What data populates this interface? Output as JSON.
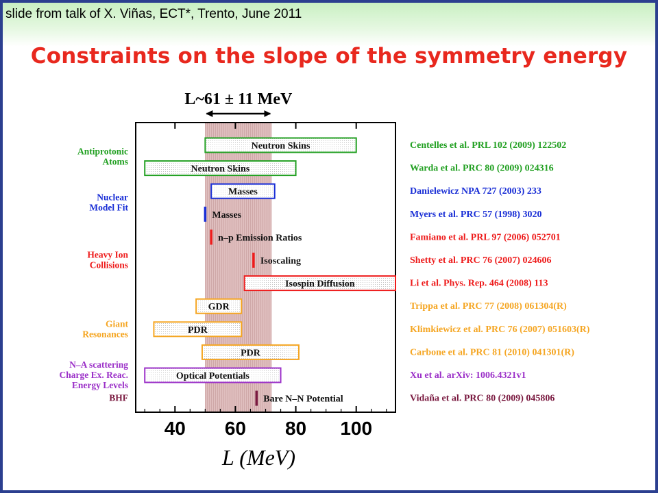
{
  "slide": {
    "credit": "slide from talk of X. Viñas, ECT*, Trento, June 2011",
    "title": "Constraints on the slope of the symmetry energy"
  },
  "chart_data": {
    "type": "bar",
    "title": "L~61 ± 11 MeV",
    "xlabel": "L (MeV)",
    "xlim": [
      27,
      113
    ],
    "xticks": [
      40,
      60,
      80,
      100
    ],
    "band": {
      "center": 61,
      "error": 11,
      "range": [
        50,
        72
      ],
      "color": "#d9b3b3"
    },
    "colors": {
      "Antiprotonic Atoms": "#22a022",
      "Nuclear Model Fit": "#1a2fd6",
      "Heavy Ion Collisions": "#ee1c1c",
      "Giant Resonances": "#f5a623",
      "N-A scattering": "#9b30c8",
      "BHF": "#7a1a40"
    },
    "groups": [
      {
        "name": "Antiprotonic Atoms",
        "lines": [
          "Antiprotonic",
          "Atoms"
        ],
        "color": "#22a022",
        "rows": [
          0,
          1
        ]
      },
      {
        "name": "Nuclear Model Fit",
        "lines": [
          "Nuclear",
          "Model Fit"
        ],
        "color": "#1a2fd6",
        "rows": [
          2,
          3
        ]
      },
      {
        "name": "Heavy Ion Collisions",
        "lines": [
          "Heavy Ion",
          "Collisions"
        ],
        "color": "#ee1c1c",
        "rows": [
          4,
          5,
          6
        ]
      },
      {
        "name": "Giant Resonances",
        "lines": [
          "Giant",
          "Resonances"
        ],
        "color": "#f5a623",
        "rows": [
          7,
          8,
          9
        ]
      },
      {
        "name": "N-A scattering",
        "lines": [
          "N–A scattering",
          "Charge Ex. Reac.",
          "Energy Levels"
        ],
        "color": "#9b30c8",
        "rows": [
          10
        ]
      },
      {
        "name": "BHF",
        "lines": [
          "BHF"
        ],
        "color": "#7a1a40",
        "rows": [
          11
        ]
      }
    ],
    "series": [
      {
        "label": "Neutron Skins",
        "min": 50,
        "max": 100,
        "color": "#22a022",
        "kind": "box",
        "ref": "Centelles et al. PRL 102 (2009) 122502"
      },
      {
        "label": "Neutron Skins",
        "min": 30,
        "max": 80,
        "color": "#22a022",
        "kind": "box",
        "ref": "Warda et al. PRC 80 (2009) 024316"
      },
      {
        "label": "Masses",
        "min": 52,
        "max": 73,
        "color": "#1a2fd6",
        "kind": "box",
        "ref": "Danielewicz NPA 727 (2003) 233"
      },
      {
        "label": "Masses",
        "min": 49.5,
        "max": 50.5,
        "color": "#1a2fd6",
        "kind": "line",
        "ref": "Myers et al. PRC 57 (1998) 3020"
      },
      {
        "label": "n–p Emission Ratios",
        "min": 51.5,
        "max": 52.5,
        "color": "#ee1c1c",
        "kind": "line",
        "ref": "Famiano et al. PRL 97 (2006) 052701"
      },
      {
        "label": "Isoscaling",
        "min": 65.5,
        "max": 66.5,
        "color": "#ee1c1c",
        "kind": "line",
        "ref": "Shetty et al. PRC 76 (2007) 024606"
      },
      {
        "label": "Isospin Diffusion",
        "min": 63,
        "max": 113,
        "color": "#ee1c1c",
        "kind": "box",
        "ref": "Li et al. Phys. Rep. 464 (2008) 113"
      },
      {
        "label": "GDR",
        "min": 47,
        "max": 62,
        "color": "#f5a623",
        "kind": "box",
        "ref": "Trippa et al. PRC 77 (2008) 061304(R)"
      },
      {
        "label": "PDR",
        "min": 33,
        "max": 62,
        "color": "#f5a623",
        "kind": "box",
        "ref": "Klimkiewicz et al. PRC 76 (2007) 051603(R)"
      },
      {
        "label": "PDR",
        "min": 49,
        "max": 81,
        "color": "#f5a623",
        "kind": "box",
        "ref": "Carbone et al. PRC 81 (2010) 041301(R)"
      },
      {
        "label": "Optical Potentials",
        "min": 30,
        "max": 75,
        "color": "#9b30c8",
        "kind": "box",
        "ref": "Xu et al. arXiv: 1006.4321v1"
      },
      {
        "label": "Bare N–N Potential",
        "min": 66.5,
        "max": 67.5,
        "color": "#7a1a40",
        "kind": "line",
        "ref": "Vidaña et al. PRC 80 (2009) 045806"
      }
    ]
  }
}
